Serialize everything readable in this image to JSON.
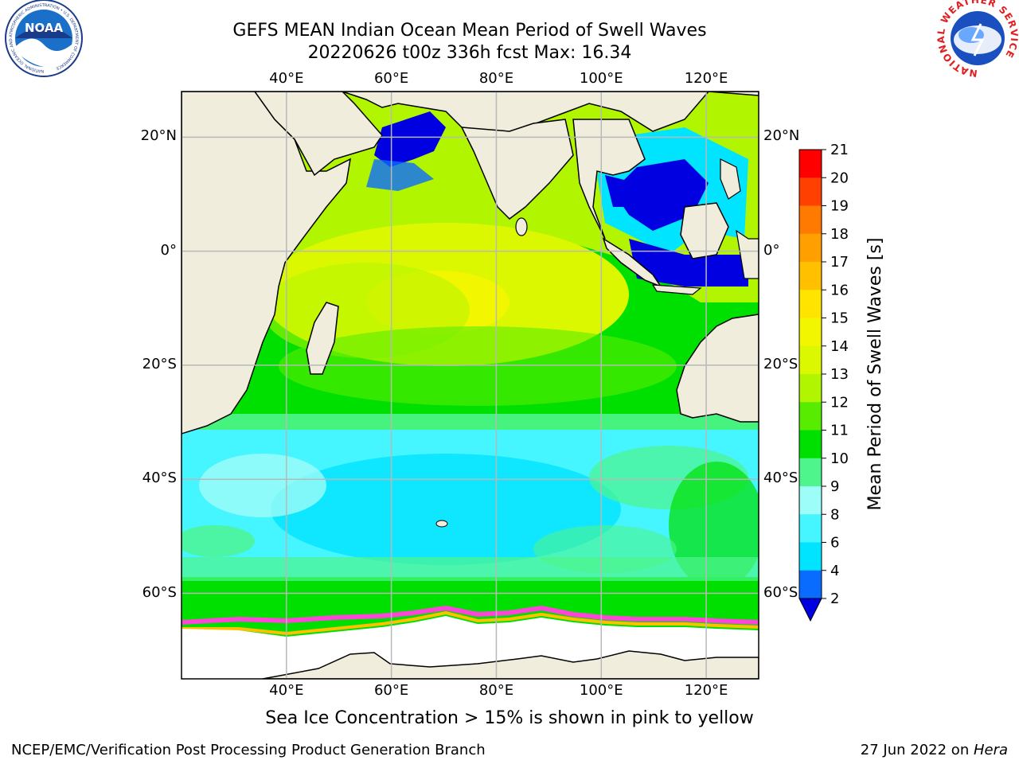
{
  "title": {
    "line1": "GEFS MEAN Indian Ocean Mean Period of Swell Waves",
    "line2": "20220626 t00z 336h fcst   Max: 16.34"
  },
  "axes": {
    "lon_ticks": [
      "40°E",
      "60°E",
      "80°E",
      "100°E",
      "120°E"
    ],
    "lat_ticks": [
      "20°N",
      "0°",
      "20°S",
      "40°S",
      "60°S"
    ],
    "lon_values": [
      40,
      60,
      80,
      100,
      120
    ],
    "lat_values": [
      20,
      0,
      -20,
      -40,
      -60
    ],
    "lon_range": [
      20,
      130
    ],
    "lat_range": [
      -75,
      28
    ],
    "grid": true
  },
  "colorbar": {
    "label": "Mean Period of Swell Waves [s]",
    "ticks": [
      "21",
      "20",
      "19",
      "18",
      "17",
      "16",
      "15",
      "14",
      "13",
      "12",
      "11",
      "10",
      "9",
      "8",
      "6",
      "4",
      "2"
    ],
    "colors": [
      "#0000e0",
      "#0a6cff",
      "#00e4ff",
      "#45f5ff",
      "#9dfdf9",
      "#4ef58c",
      "#00e000",
      "#58ec00",
      "#b2f500",
      "#dcf800",
      "#f2f700",
      "#ffe400",
      "#ffc000",
      "#ffa000",
      "#ff7a00",
      "#ff4000",
      "#ff0000"
    ]
  },
  "colors": {
    "land": "#f0eddc",
    "grid": "#b8b8b8",
    "deep_swell": "#0000e0",
    "short_swell": "#45f5ff",
    "ice_fringe": "#ff44d8"
  },
  "logos": {
    "noaa_text": "NOAA",
    "noaa_ring": "NATIONAL OCEANIC AND ATMOSPHERIC ADMINISTRATION • U.S. DEPARTMENT OF COMMERCE",
    "nws_ring": "NATIONAL WEATHER SERVICE"
  },
  "footnote": "Sea Ice Concentration > 15% is shown in pink to yellow",
  "credit": {
    "left": "NCEP/EMC/Verification Post Processing Product Generation Branch",
    "date": "27 Jun 2022 on ",
    "machine": "Hera"
  }
}
